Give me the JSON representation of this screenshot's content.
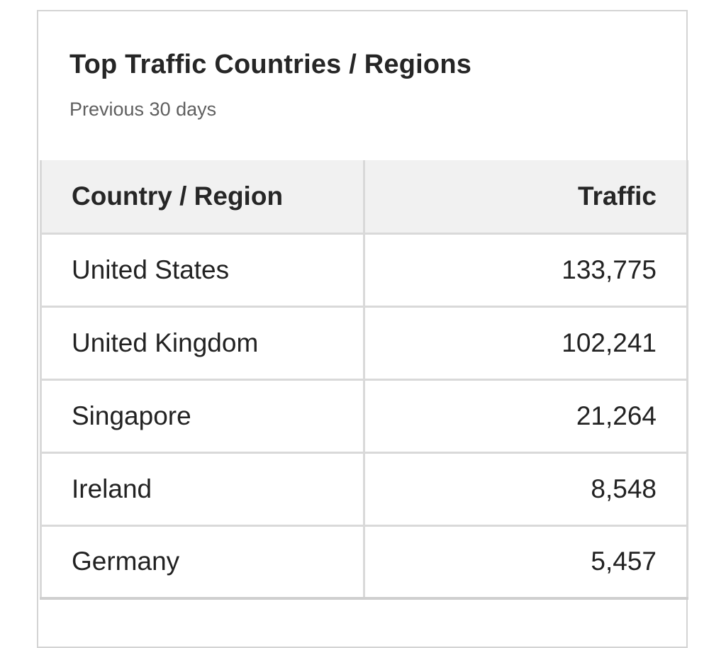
{
  "card": {
    "title": "Top Traffic Countries / Regions",
    "subtitle": "Previous 30 days"
  },
  "table": {
    "headers": {
      "country": "Country / Region",
      "traffic": "Traffic"
    },
    "rows": [
      {
        "country": "United States",
        "traffic": "133,775"
      },
      {
        "country": "United Kingdom",
        "traffic": "102,241"
      },
      {
        "country": "Singapore",
        "traffic": "21,264"
      },
      {
        "country": "Ireland",
        "traffic": "8,548"
      },
      {
        "country": "Germany",
        "traffic": "5,457"
      }
    ]
  }
}
